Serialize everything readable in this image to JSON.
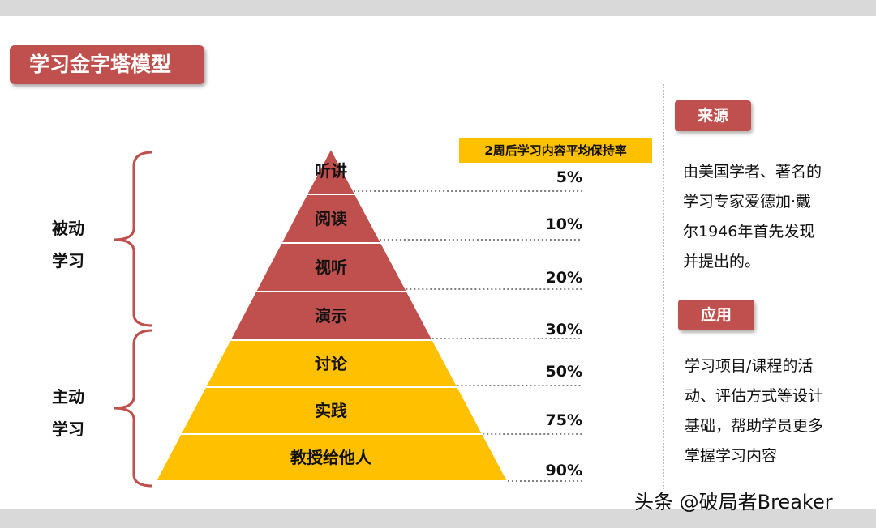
{
  "title": "学习金字塔模型",
  "retention_header": "2周后学习内容平均保持率",
  "groups": {
    "passive": [
      "被动",
      "学习"
    ],
    "active": [
      "主动",
      "学习"
    ]
  },
  "layers": [
    {
      "label": "听讲",
      "retention": "5%",
      "group": "passive"
    },
    {
      "label": "阅读",
      "retention": "10%",
      "group": "passive"
    },
    {
      "label": "视听",
      "retention": "20%",
      "group": "passive"
    },
    {
      "label": "演示",
      "retention": "30%",
      "group": "passive"
    },
    {
      "label": "讨论",
      "retention": "50%",
      "group": "active"
    },
    {
      "label": "实践",
      "retention": "75%",
      "group": "active"
    },
    {
      "label": "教授给他人",
      "retention": "90%",
      "group": "active"
    }
  ],
  "source": {
    "heading": "来源",
    "lines": [
      "由美国学者、著名的",
      "学习专家爱德加·戴",
      "尔1946年首先发现",
      "并提出的。"
    ]
  },
  "application": {
    "heading": "应用",
    "lines": [
      "学习项目/课程的活",
      "动、评估方式等设计",
      "基础，帮助学员更多",
      "掌握学习内容"
    ]
  },
  "watermark": "头条 @破局者Breaker",
  "colors": {
    "red": "#c0504d",
    "yellow": "#ffc000",
    "dotted": "#7f7f7f"
  }
}
